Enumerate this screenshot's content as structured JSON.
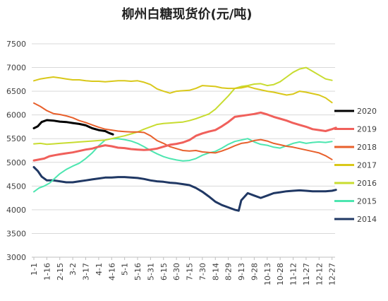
{
  "chart_data": {
    "type": "line",
    "title": "柳州白糖现货价(元/吨)",
    "xlabel": "",
    "ylabel": "",
    "ylim": [
      3000,
      7500
    ],
    "yticks": [
      3000,
      3500,
      4000,
      4500,
      5000,
      5500,
      6000,
      6500,
      7000,
      7500
    ],
    "grid": true,
    "legend_position": "right",
    "x_tick_labels": [
      "1-1",
      "1-16",
      "2-15",
      "3-2",
      "3-17",
      "4-1",
      "4-16",
      "5-1",
      "5-16",
      "5-31",
      "6-15",
      "6-30",
      "7-15",
      "7-30",
      "8-14",
      "8-29",
      "9-13",
      "9-28",
      "10-13",
      "10-28",
      "11-12",
      "11-27",
      "12-12",
      "12-27"
    ],
    "series": [
      {
        "name": "2020",
        "color": "#000000",
        "width": 3,
        "points": [
          [
            0,
            5720
          ],
          [
            0.3,
            5760
          ],
          [
            0.6,
            5850
          ],
          [
            1,
            5890
          ],
          [
            1.5,
            5880
          ],
          [
            2,
            5860
          ],
          [
            2.5,
            5850
          ],
          [
            3,
            5830
          ],
          [
            3.5,
            5810
          ],
          [
            4,
            5780
          ],
          [
            4.5,
            5720
          ],
          [
            5,
            5680
          ],
          [
            5.5,
            5660
          ],
          [
            5.8,
            5620
          ],
          [
            6.1,
            5590
          ]
        ]
      },
      {
        "name": "2019",
        "color": "#F0605B",
        "width": 3,
        "points": [
          [
            0,
            5040
          ],
          [
            0.8,
            5080
          ],
          [
            1.2,
            5130
          ],
          [
            1.6,
            5150
          ],
          [
            2,
            5170
          ],
          [
            2.5,
            5190
          ],
          [
            3,
            5210
          ],
          [
            3.5,
            5240
          ],
          [
            4,
            5270
          ],
          [
            4.5,
            5290
          ],
          [
            5,
            5330
          ],
          [
            5.5,
            5360
          ],
          [
            6,
            5340
          ],
          [
            6.5,
            5310
          ],
          [
            7,
            5300
          ],
          [
            7.5,
            5280
          ],
          [
            8,
            5270
          ],
          [
            8.5,
            5260
          ],
          [
            9,
            5270
          ],
          [
            9.5,
            5290
          ],
          [
            10,
            5330
          ],
          [
            10.5,
            5370
          ],
          [
            11,
            5390
          ],
          [
            11.5,
            5420
          ],
          [
            12,
            5470
          ],
          [
            12.5,
            5560
          ],
          [
            13,
            5610
          ],
          [
            13.5,
            5650
          ],
          [
            14,
            5680
          ],
          [
            14.5,
            5760
          ],
          [
            15,
            5850
          ],
          [
            15.5,
            5960
          ],
          [
            16,
            5980
          ],
          [
            16.5,
            6000
          ],
          [
            17,
            6020
          ],
          [
            17.5,
            6050
          ],
          [
            18,
            6010
          ],
          [
            18.5,
            5960
          ],
          [
            19,
            5920
          ],
          [
            19.5,
            5880
          ],
          [
            20,
            5830
          ],
          [
            20.5,
            5790
          ],
          [
            21,
            5750
          ],
          [
            21.5,
            5700
          ],
          [
            22,
            5680
          ],
          [
            22.5,
            5660
          ],
          [
            23,
            5700
          ],
          [
            23.3,
            5730
          ]
        ]
      },
      {
        "name": "2018",
        "color": "#E8602C",
        "width": 2,
        "points": [
          [
            0,
            6250
          ],
          [
            0.5,
            6180
          ],
          [
            1,
            6090
          ],
          [
            1.5,
            6030
          ],
          [
            2,
            6010
          ],
          [
            2.5,
            5980
          ],
          [
            3,
            5940
          ],
          [
            3.5,
            5880
          ],
          [
            4,
            5840
          ],
          [
            4.5,
            5790
          ],
          [
            5,
            5740
          ],
          [
            5.5,
            5700
          ],
          [
            6,
            5680
          ],
          [
            6.5,
            5660
          ],
          [
            7,
            5650
          ],
          [
            7.5,
            5640
          ],
          [
            8,
            5640
          ],
          [
            8.5,
            5630
          ],
          [
            9,
            5560
          ],
          [
            9.5,
            5460
          ],
          [
            10,
            5400
          ],
          [
            10.5,
            5330
          ],
          [
            11,
            5290
          ],
          [
            11.5,
            5250
          ],
          [
            12,
            5240
          ],
          [
            12.5,
            5250
          ],
          [
            13,
            5220
          ],
          [
            13.5,
            5210
          ],
          [
            14,
            5200
          ],
          [
            14.5,
            5240
          ],
          [
            15,
            5290
          ],
          [
            15.5,
            5350
          ],
          [
            16,
            5400
          ],
          [
            16.5,
            5420
          ],
          [
            17,
            5460
          ],
          [
            17.5,
            5480
          ],
          [
            18,
            5450
          ],
          [
            18.5,
            5400
          ],
          [
            19,
            5370
          ],
          [
            19.5,
            5340
          ],
          [
            20,
            5320
          ],
          [
            20.5,
            5290
          ],
          [
            21,
            5260
          ],
          [
            21.5,
            5230
          ],
          [
            22,
            5200
          ],
          [
            22.5,
            5140
          ],
          [
            23,
            5060
          ]
        ]
      },
      {
        "name": "2017",
        "color": "#D9C81A",
        "width": 2,
        "points": [
          [
            0,
            6720
          ],
          [
            0.5,
            6760
          ],
          [
            1,
            6780
          ],
          [
            1.5,
            6800
          ],
          [
            2,
            6780
          ],
          [
            2.5,
            6760
          ],
          [
            3,
            6740
          ],
          [
            3.5,
            6740
          ],
          [
            4,
            6720
          ],
          [
            4.5,
            6710
          ],
          [
            5,
            6710
          ],
          [
            5.5,
            6700
          ],
          [
            6,
            6710
          ],
          [
            6.5,
            6720
          ],
          [
            7,
            6720
          ],
          [
            7.5,
            6710
          ],
          [
            8,
            6720
          ],
          [
            8.5,
            6690
          ],
          [
            9,
            6640
          ],
          [
            9.5,
            6550
          ],
          [
            10,
            6500
          ],
          [
            10.5,
            6460
          ],
          [
            11,
            6500
          ],
          [
            11.5,
            6510
          ],
          [
            12,
            6520
          ],
          [
            12.5,
            6560
          ],
          [
            13,
            6620
          ],
          [
            13.5,
            6610
          ],
          [
            14,
            6600
          ],
          [
            14.5,
            6570
          ],
          [
            15,
            6560
          ],
          [
            15.5,
            6560
          ],
          [
            16,
            6570
          ],
          [
            16.5,
            6600
          ],
          [
            17,
            6560
          ],
          [
            17.5,
            6530
          ],
          [
            18,
            6500
          ],
          [
            18.5,
            6480
          ],
          [
            19,
            6450
          ],
          [
            19.5,
            6420
          ],
          [
            20,
            6440
          ],
          [
            20.5,
            6500
          ],
          [
            21,
            6480
          ],
          [
            21.5,
            6450
          ],
          [
            22,
            6420
          ],
          [
            22.5,
            6360
          ],
          [
            23,
            6260
          ]
        ]
      },
      {
        "name": "2016",
        "color": "#C8DC30",
        "width": 2,
        "points": [
          [
            0,
            5390
          ],
          [
            0.5,
            5400
          ],
          [
            1,
            5380
          ],
          [
            1.5,
            5390
          ],
          [
            2,
            5400
          ],
          [
            2.5,
            5410
          ],
          [
            3,
            5420
          ],
          [
            3.5,
            5430
          ],
          [
            4,
            5440
          ],
          [
            4.5,
            5450
          ],
          [
            5,
            5460
          ],
          [
            5.5,
            5470
          ],
          [
            6,
            5500
          ],
          [
            6.5,
            5530
          ],
          [
            7,
            5560
          ],
          [
            7.5,
            5600
          ],
          [
            8,
            5640
          ],
          [
            8.5,
            5700
          ],
          [
            9,
            5750
          ],
          [
            9.5,
            5800
          ],
          [
            10,
            5820
          ],
          [
            10.5,
            5830
          ],
          [
            11,
            5840
          ],
          [
            11.5,
            5850
          ],
          [
            12,
            5880
          ],
          [
            12.5,
            5920
          ],
          [
            13,
            5970
          ],
          [
            13.5,
            6020
          ],
          [
            14,
            6120
          ],
          [
            14.5,
            6260
          ],
          [
            15,
            6400
          ],
          [
            15.5,
            6560
          ],
          [
            16,
            6600
          ],
          [
            16.5,
            6620
          ],
          [
            17,
            6650
          ],
          [
            17.5,
            6660
          ],
          [
            18,
            6620
          ],
          [
            18.5,
            6640
          ],
          [
            19,
            6700
          ],
          [
            19.5,
            6800
          ],
          [
            20,
            6900
          ],
          [
            20.5,
            6970
          ],
          [
            21,
            7000
          ],
          [
            21.5,
            6920
          ],
          [
            22,
            6840
          ],
          [
            22.5,
            6760
          ],
          [
            23,
            6730
          ]
        ]
      },
      {
        "name": "2015",
        "color": "#4DE6B0",
        "width": 2,
        "points": [
          [
            0,
            4380
          ],
          [
            0.4,
            4460
          ],
          [
            0.8,
            4500
          ],
          [
            1.2,
            4560
          ],
          [
            1.6,
            4660
          ],
          [
            2,
            4760
          ],
          [
            2.5,
            4850
          ],
          [
            3,
            4920
          ],
          [
            3.5,
            4980
          ],
          [
            4,
            5080
          ],
          [
            4.5,
            5200
          ],
          [
            5,
            5350
          ],
          [
            5.5,
            5470
          ],
          [
            6,
            5500
          ],
          [
            6.5,
            5500
          ],
          [
            7,
            5480
          ],
          [
            7.5,
            5450
          ],
          [
            8,
            5400
          ],
          [
            8.5,
            5330
          ],
          [
            9,
            5250
          ],
          [
            9.5,
            5180
          ],
          [
            10,
            5120
          ],
          [
            10.5,
            5080
          ],
          [
            11,
            5050
          ],
          [
            11.5,
            5030
          ],
          [
            12,
            5040
          ],
          [
            12.5,
            5080
          ],
          [
            13,
            5150
          ],
          [
            13.5,
            5200
          ],
          [
            14,
            5230
          ],
          [
            14.5,
            5300
          ],
          [
            15,
            5380
          ],
          [
            15.5,
            5440
          ],
          [
            16,
            5470
          ],
          [
            16.5,
            5500
          ],
          [
            17,
            5430
          ],
          [
            17.5,
            5380
          ],
          [
            18,
            5360
          ],
          [
            18.5,
            5320
          ],
          [
            19,
            5300
          ],
          [
            19.5,
            5350
          ],
          [
            20,
            5400
          ],
          [
            20.5,
            5430
          ],
          [
            21,
            5400
          ],
          [
            21.5,
            5420
          ],
          [
            22,
            5430
          ],
          [
            22.5,
            5420
          ],
          [
            23,
            5440
          ]
        ]
      },
      {
        "name": "2014",
        "color": "#203864",
        "width": 3,
        "points": [
          [
            0,
            4900
          ],
          [
            0.3,
            4820
          ],
          [
            0.6,
            4700
          ],
          [
            1,
            4620
          ],
          [
            1.5,
            4620
          ],
          [
            2,
            4600
          ],
          [
            2.5,
            4580
          ],
          [
            3,
            4580
          ],
          [
            3.5,
            4600
          ],
          [
            4,
            4620
          ],
          [
            4.5,
            4640
          ],
          [
            5,
            4660
          ],
          [
            5.5,
            4680
          ],
          [
            6,
            4680
          ],
          [
            6.5,
            4690
          ],
          [
            7,
            4690
          ],
          [
            7.5,
            4680
          ],
          [
            8,
            4670
          ],
          [
            8.5,
            4650
          ],
          [
            9,
            4620
          ],
          [
            9.5,
            4600
          ],
          [
            10,
            4590
          ],
          [
            10.5,
            4570
          ],
          [
            11,
            4560
          ],
          [
            11.5,
            4540
          ],
          [
            12,
            4520
          ],
          [
            12.5,
            4460
          ],
          [
            13,
            4380
          ],
          [
            13.5,
            4280
          ],
          [
            14,
            4170
          ],
          [
            14.5,
            4100
          ],
          [
            15,
            4050
          ],
          [
            15.5,
            4000
          ],
          [
            15.8,
            3980
          ],
          [
            16,
            4200
          ],
          [
            16.5,
            4350
          ],
          [
            17,
            4300
          ],
          [
            17.5,
            4250
          ],
          [
            18,
            4300
          ],
          [
            18.5,
            4350
          ],
          [
            19,
            4370
          ],
          [
            19.5,
            4390
          ],
          [
            20,
            4400
          ],
          [
            20.5,
            4410
          ],
          [
            21,
            4400
          ],
          [
            21.5,
            4390
          ],
          [
            22,
            4390
          ],
          [
            22.5,
            4390
          ],
          [
            23,
            4400
          ],
          [
            23.3,
            4420
          ]
        ]
      }
    ]
  }
}
